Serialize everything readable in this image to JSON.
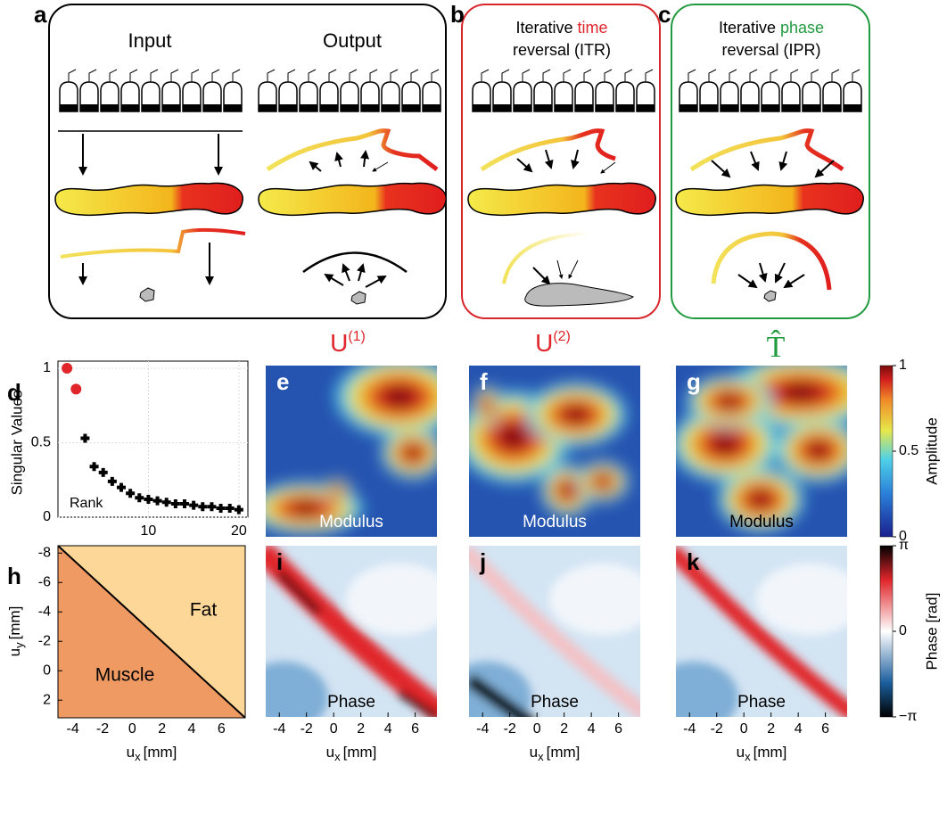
{
  "panels": {
    "a": {
      "label": "a",
      "input": "Input",
      "output": "Output"
    },
    "b": {
      "label": "b",
      "line1_pre": "Iterative",
      "line1_em": "time",
      "line2": "reversal (ITR)"
    },
    "c": {
      "label": "c",
      "line1_pre": "Iterative",
      "line1_em": "phase",
      "line2": "reversal (IPR)"
    },
    "d": {
      "label": "d"
    },
    "h": {
      "label": "h",
      "fat": "Fat",
      "muscle": "Muscle"
    }
  },
  "operators": [
    {
      "base": "U",
      "sup": "(1)",
      "color": "#e0262b"
    },
    {
      "base": "U",
      "sup": "(2)",
      "color": "#e0262b"
    },
    {
      "base": "T̂",
      "color": "#1f9a3c"
    }
  ],
  "maps": [
    {
      "label": "e",
      "caption": "Modulus"
    },
    {
      "label": "f",
      "caption": "Modulus"
    },
    {
      "label": "g",
      "caption": "Modulus"
    },
    {
      "label": "i",
      "caption": "Phase"
    },
    {
      "label": "j",
      "caption": "Phase"
    },
    {
      "label": "k",
      "caption": "Phase"
    }
  ],
  "colorbars": {
    "amplitude": {
      "label": "Amplitude",
      "lim": [
        0,
        1
      ],
      "ticks": [
        1,
        0.5,
        0
      ]
    },
    "phase": {
      "label": "Phase [rad]",
      "lim": [
        -3.1416,
        3.1416
      ],
      "ticks": [
        {
          "value": 3.1416,
          "label": "π"
        },
        0,
        {
          "value": -3.1416,
          "label": "−π"
        }
      ]
    }
  },
  "map_axes": {
    "xlim": [
      -5,
      7.6
    ],
    "xticks": [
      -4,
      -2,
      0,
      2,
      4,
      6
    ],
    "x_label": {
      "main": "u",
      "sub": "x",
      "unit": "[mm]"
    },
    "ylim": [
      -8.5,
      3.2
    ],
    "yticks": [
      -8,
      -6,
      -4,
      -2,
      0,
      2
    ],
    "y_label": {
      "main": "u",
      "sub": "y",
      "unit": "[mm]"
    }
  },
  "chart_data": {
    "type": "scatter",
    "ylabel": "Singular Values",
    "annotation": "Rank",
    "xlim": [
      0,
      21
    ],
    "xticks": [
      10,
      20
    ],
    "ylim": [
      0,
      1
    ],
    "yticks": [
      0,
      0.5,
      1
    ],
    "grid": true,
    "series": [
      {
        "color": "#e0262b",
        "marker": "circle",
        "x": [
          1,
          2
        ],
        "values": [
          1.0,
          0.86
        ]
      },
      {
        "color": "#000000",
        "marker": "cross",
        "x": [
          3,
          4,
          5,
          6,
          7,
          8,
          9,
          10,
          11,
          12,
          13,
          14,
          15,
          16,
          17,
          18,
          19,
          20
        ],
        "values": [
          0.53,
          0.34,
          0.3,
          0.24,
          0.2,
          0.16,
          0.13,
          0.12,
          0.11,
          0.1,
          0.09,
          0.09,
          0.08,
          0.07,
          0.07,
          0.06,
          0.06,
          0.05
        ]
      }
    ]
  }
}
